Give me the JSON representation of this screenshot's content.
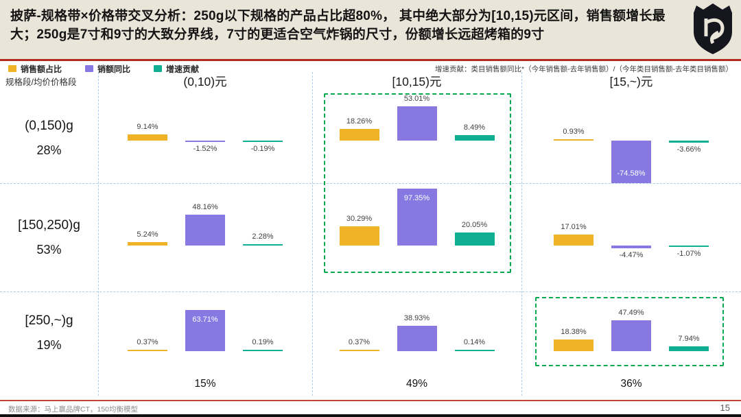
{
  "banner": {
    "title": "披萨-规格带×价格带交叉分析：250g以下规格的产品占比超80%， 其中绝大部分为[10,15)元区间，销售额增长最大；250g是7寸和9寸的大致分界线，7寸的更适合空气炸锅的尺寸，份额增长远超烤箱的9寸"
  },
  "legend": {
    "items": [
      {
        "label": "销售额占比",
        "color": "#F0B227"
      },
      {
        "label": "销额同比",
        "color": "#8779E1"
      },
      {
        "label": "增速贡献",
        "color": "#10AE92"
      }
    ],
    "note": "增速贡献：类目销售额同比*（今年销售额-去年销售额）/（今年类目销售额-去年类目销售额）"
  },
  "chart_data": {
    "type": "bar",
    "title": "披萨-规格带×价格带交叉分析",
    "corner_label": "规格段/均价价格段",
    "series": [
      "销售额占比",
      "销额同比",
      "增速贡献"
    ],
    "unit": "%",
    "columns": [
      {
        "label": "(0,10)元",
        "share": "15%"
      },
      {
        "label": "[10,15)元",
        "share": "49%"
      },
      {
        "label": "[15,~)元",
        "share": "36%"
      }
    ],
    "rows": [
      {
        "label": "(0,150)g",
        "share": "28%"
      },
      {
        "label": "[150,250)g",
        "share": "53%"
      },
      {
        "label": "[250,~)g",
        "share": "19%"
      }
    ],
    "cells": [
      [
        {
          "values": [
            9.14,
            -1.52,
            -0.19
          ],
          "label_pos": [
            "above",
            "below",
            "below"
          ]
        },
        {
          "values": [
            18.26,
            53.01,
            8.49
          ],
          "label_pos": [
            "above",
            "above",
            "above"
          ]
        },
        {
          "values": [
            0.93,
            -74.58,
            -3.66
          ],
          "label_pos": [
            "above",
            "inside-bottom",
            "below"
          ]
        }
      ],
      [
        {
          "values": [
            5.24,
            48.16,
            2.28
          ],
          "label_pos": [
            "above",
            "above",
            "above"
          ]
        },
        {
          "values": [
            30.29,
            97.35,
            20.05
          ],
          "label_pos": [
            "above",
            "inside-top",
            "above"
          ]
        },
        {
          "values": [
            17.01,
            -4.47,
            -1.07
          ],
          "label_pos": [
            "above",
            "below",
            "below"
          ]
        }
      ],
      [
        {
          "values": [
            0.37,
            63.71,
            0.19
          ],
          "label_pos": [
            "above",
            "inside-top",
            "above"
          ]
        },
        {
          "values": [
            0.37,
            38.93,
            0.14
          ],
          "label_pos": [
            "above",
            "above",
            "above"
          ]
        },
        {
          "values": [
            18.38,
            47.49,
            7.94
          ],
          "label_pos": [
            "above",
            "above",
            "above"
          ]
        }
      ]
    ],
    "highlights": [
      {
        "col": 1,
        "row_start": 0,
        "row_end": 1
      },
      {
        "col": 2,
        "row_start": 2,
        "row_end": 2
      }
    ],
    "grid": "dashed",
    "legend_position": "top-left"
  },
  "footer": {
    "source": "数据来源：马上赢品牌CT，150均衡模型",
    "page": "15"
  },
  "colors": {
    "banner_bg": "#EAE5D9",
    "accent_red": "#B22A1B",
    "footer_red": "#C4453A",
    "series_yellow": "#F0B227",
    "series_purple": "#8779E1",
    "series_teal": "#10AE92",
    "highlight_green": "#00A94F",
    "grid_dash": "#AECBEC",
    "logo_dark": "#16161F"
  }
}
